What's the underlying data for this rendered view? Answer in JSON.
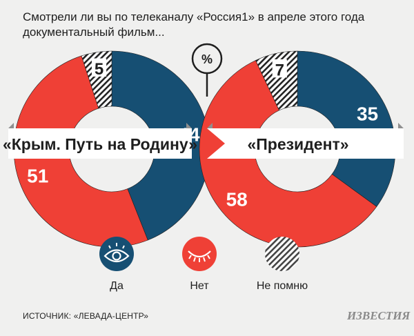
{
  "title": "Смотрели ли вы по телеканалу «Россия1» в апреле этого года документальный фильм...",
  "unit": "%",
  "source": "ИСТОЧНИК: «ЛЕВАДА-ЦЕНТР»",
  "logo": "ИЗВЕСТИЯ",
  "colors": {
    "yes": "#164f73",
    "no": "#ef4036",
    "dontremember": "hatch",
    "background": "#f0f0ef"
  },
  "legend": [
    {
      "key": "yes",
      "label": "Да",
      "icon": "open-eye-icon"
    },
    {
      "key": "no",
      "label": "Нет",
      "icon": "closed-eye-icon"
    },
    {
      "key": "dontremember",
      "label": "Не помню",
      "icon": "hatched-circle-icon"
    }
  ],
  "chart_data": [
    {
      "type": "pie",
      "title": "«Крым. Путь на Родину»",
      "categories": [
        "Да",
        "Нет",
        "Не помню"
      ],
      "values": [
        44,
        51,
        5
      ]
    },
    {
      "type": "pie",
      "title": "«Президент»",
      "categories": [
        "Да",
        "Нет",
        "Не помню"
      ],
      "values": [
        35,
        58,
        7
      ]
    }
  ]
}
